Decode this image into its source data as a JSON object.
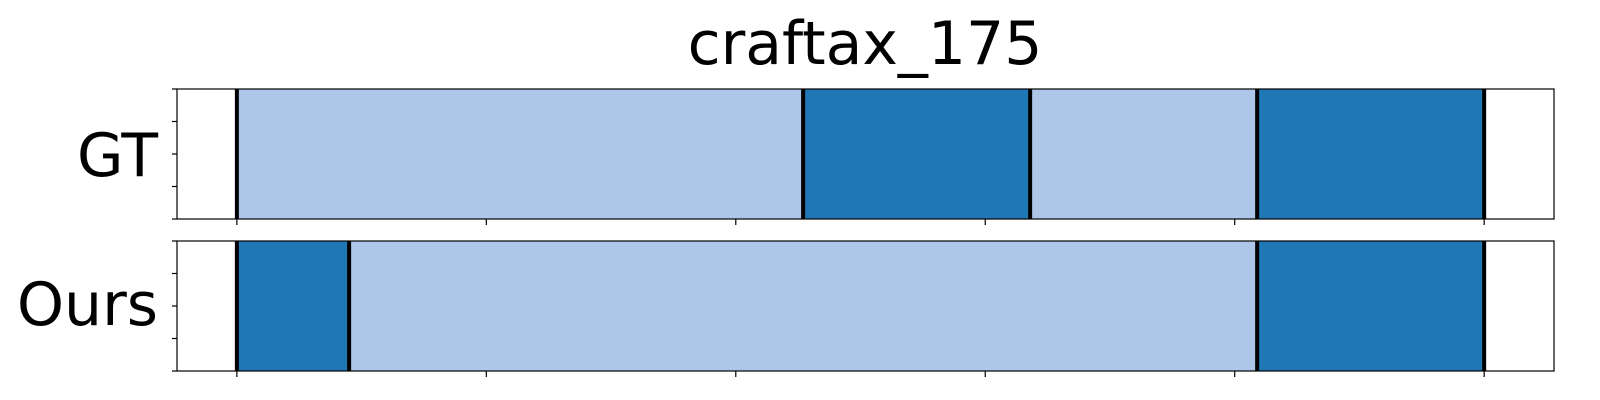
{
  "chart_data": {
    "type": "bar",
    "orientation": "horizontal-segments",
    "title": "craftax_175",
    "x_range": [
      -12,
      264
    ],
    "x_ticks": [
      0,
      50,
      100,
      150,
      200,
      250
    ],
    "rows": [
      {
        "label": "GT",
        "segments": [
          {
            "start": 0,
            "end": 113.5,
            "class": "light"
          },
          {
            "start": 113.5,
            "end": 159,
            "class": "dark"
          },
          {
            "start": 159,
            "end": 204.5,
            "class": "light"
          },
          {
            "start": 204.5,
            "end": 250,
            "class": "dark"
          }
        ],
        "boundaries": [
          0,
          113.5,
          159,
          204.5,
          250
        ]
      },
      {
        "label": "Ours",
        "segments": [
          {
            "start": 0,
            "end": 22.5,
            "class": "dark"
          },
          {
            "start": 22.5,
            "end": 204.5,
            "class": "light"
          },
          {
            "start": 204.5,
            "end": 250,
            "class": "dark"
          }
        ],
        "boundaries": [
          0,
          22.5,
          204.5,
          250
        ]
      }
    ],
    "colors": {
      "light": "#aec7e8",
      "dark": "#1f77b4",
      "boundary": "#000000",
      "frame": "#000000"
    },
    "grid": false,
    "legend": "none"
  }
}
